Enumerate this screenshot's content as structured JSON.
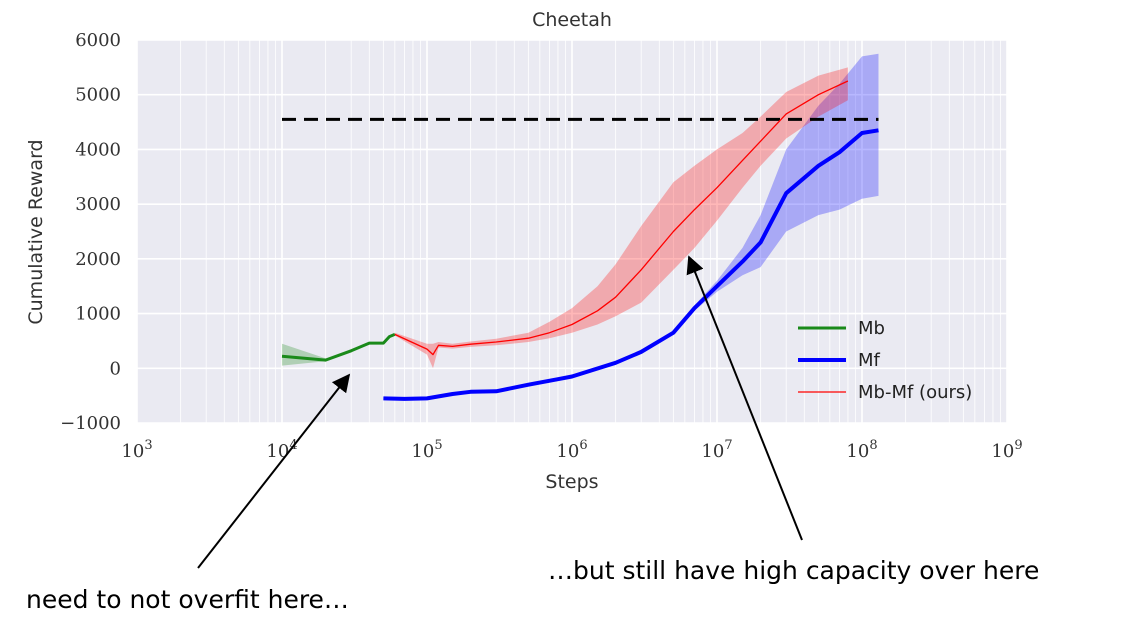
{
  "chart_data": {
    "type": "line",
    "title": "Cheetah",
    "xlabel": "Steps",
    "ylabel": "Cumulative Reward",
    "xscale": "log",
    "xlim": [
      1000,
      1000000000
    ],
    "ylim": [
      -1000,
      6000
    ],
    "x_ticks": [
      {
        "value": 1000,
        "base": "10",
        "exp": "3"
      },
      {
        "value": 10000,
        "base": "10",
        "exp": "4"
      },
      {
        "value": 100000,
        "base": "10",
        "exp": "5"
      },
      {
        "value": 1000000,
        "base": "10",
        "exp": "6"
      },
      {
        "value": 10000000,
        "base": "10",
        "exp": "7"
      },
      {
        "value": 100000000,
        "base": "10",
        "exp": "8"
      },
      {
        "value": 1000000000,
        "base": "10",
        "exp": "9"
      }
    ],
    "y_ticks": [
      {
        "value": -1000,
        "label": "−1000"
      },
      {
        "value": 0,
        "label": "0"
      },
      {
        "value": 1000,
        "label": "1000"
      },
      {
        "value": 2000,
        "label": "2000"
      },
      {
        "value": 3000,
        "label": "3000"
      },
      {
        "value": 4000,
        "label": "4000"
      },
      {
        "value": 5000,
        "label": "5000"
      },
      {
        "value": 6000,
        "label": "6000"
      }
    ],
    "grid": true,
    "legend_position": "lower-right",
    "reference_line": {
      "y": 4550,
      "x_start": 10000,
      "x_end": 130000000,
      "style": "dashed",
      "color": "#000000"
    },
    "series": [
      {
        "name": "Mb",
        "color": "#1a8a1a",
        "x": [
          10000,
          20000,
          30000,
          40000,
          50000,
          55000,
          60000
        ],
        "y": [
          220,
          150,
          320,
          460,
          460,
          580,
          620
        ],
        "lower": [
          50,
          130,
          300,
          450,
          440,
          560,
          600
        ],
        "upper": [
          450,
          180,
          350,
          480,
          480,
          600,
          650
        ]
      },
      {
        "name": "Mf",
        "color": "#0000ff",
        "x": [
          50000,
          70000,
          100000,
          150000,
          200000,
          300000,
          500000,
          800000,
          1000000,
          2000000,
          3000000,
          5000000,
          7000000,
          10000000,
          15000000,
          20000000,
          30000000,
          50000000,
          70000000,
          100000000,
          130000000
        ],
        "y": [
          -550,
          -560,
          -550,
          -470,
          -430,
          -420,
          -300,
          -200,
          -150,
          100,
          300,
          650,
          1100,
          1500,
          1950,
          2300,
          3200,
          3700,
          3950,
          4300,
          4350
        ],
        "lower": [
          -580,
          -590,
          -580,
          -500,
          -460,
          -450,
          -330,
          -230,
          -180,
          80,
          270,
          620,
          1050,
          1400,
          1700,
          1850,
          2500,
          2800,
          2900,
          3100,
          3150
        ],
        "upper": [
          -520,
          -530,
          -520,
          -440,
          -400,
          -390,
          -270,
          -170,
          -120,
          130,
          330,
          680,
          1150,
          1600,
          2200,
          2800,
          4000,
          4800,
          5200,
          5700,
          5750
        ]
      },
      {
        "name": "Mb-Mf (ours)",
        "color": "#ff0000",
        "x": [
          60000,
          100000,
          110000,
          120000,
          150000,
          200000,
          300000,
          500000,
          700000,
          1000000,
          1500000,
          2000000,
          3000000,
          5000000,
          7000000,
          10000000,
          15000000,
          20000000,
          30000000,
          50000000,
          80000000
        ],
        "y": [
          620,
          350,
          250,
          420,
          400,
          440,
          480,
          550,
          650,
          800,
          1050,
          1300,
          1800,
          2500,
          2900,
          3300,
          3800,
          4150,
          4650,
          5000,
          5250
        ],
        "lower": [
          600,
          250,
          0,
          380,
          360,
          390,
          420,
          480,
          550,
          650,
          800,
          950,
          1200,
          1800,
          2200,
          2700,
          3300,
          3700,
          4200,
          4600,
          4900
        ],
        "upper": [
          650,
          450,
          450,
          480,
          450,
          490,
          540,
          650,
          850,
          1100,
          1500,
          1900,
          2600,
          3400,
          3700,
          4000,
          4300,
          4600,
          5050,
          5350,
          5500
        ]
      }
    ]
  },
  "annotations": {
    "left_text": "need to not overfit here…",
    "right_text": "…but still have high capacity over here"
  }
}
